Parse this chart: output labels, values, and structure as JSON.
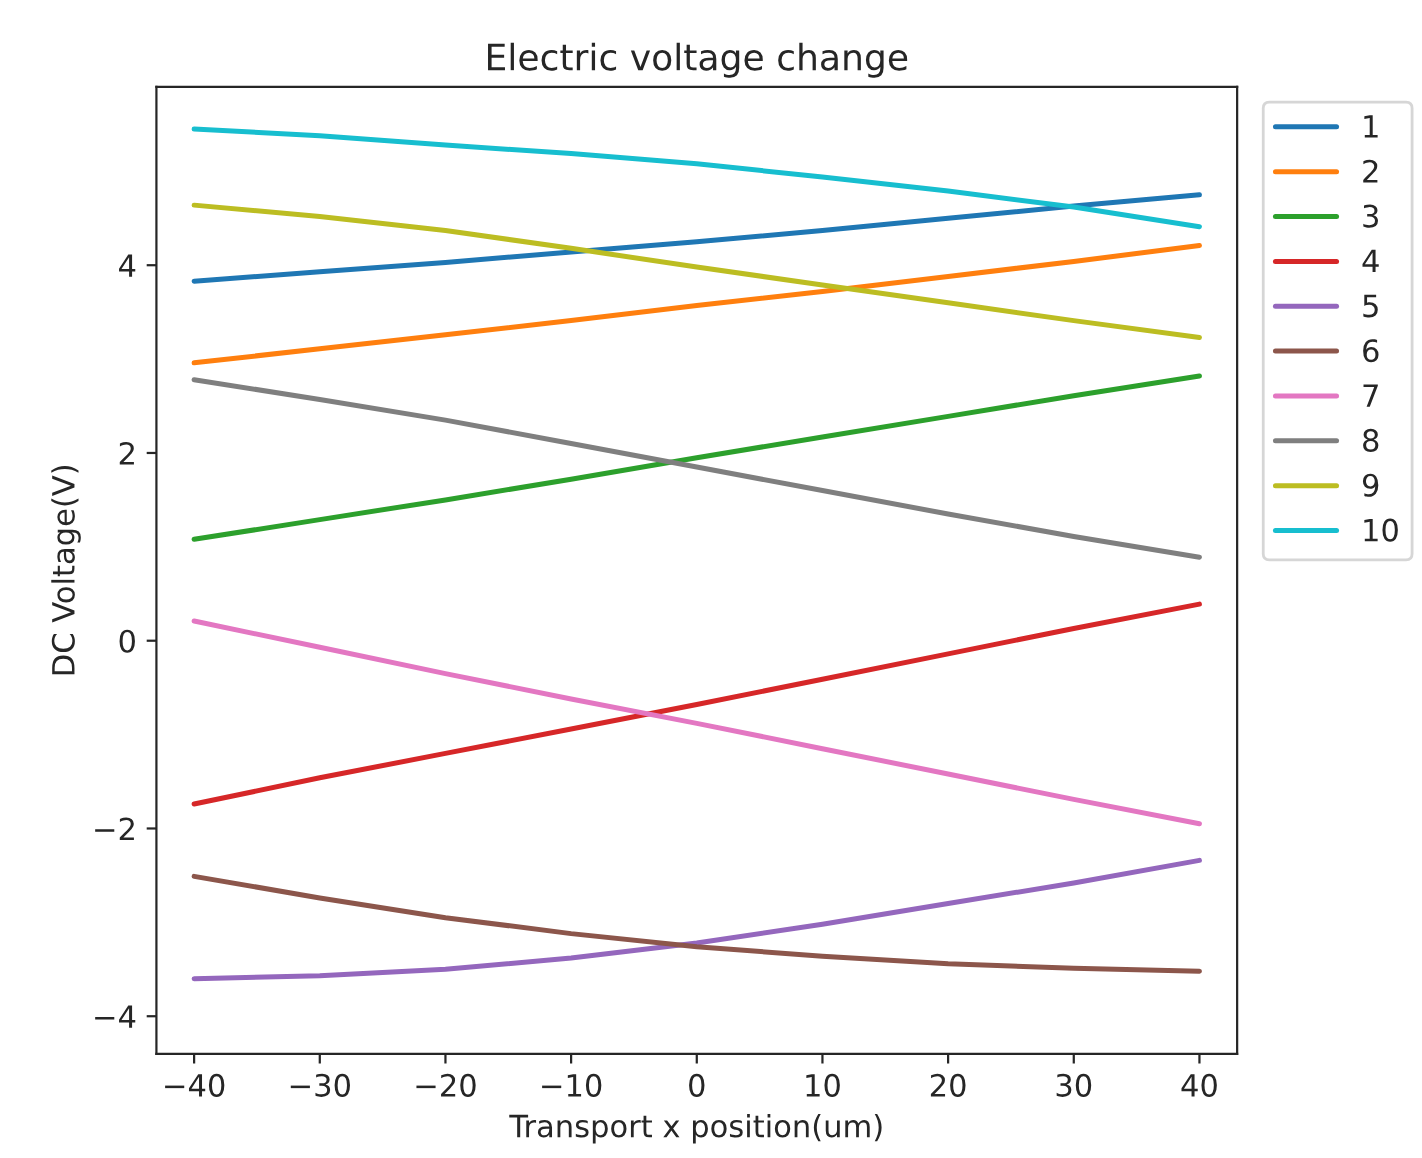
{
  "chart_data": {
    "type": "line",
    "title": "Electric voltage change",
    "xlabel": "Transport x position(um)",
    "ylabel": "DC Voltage(V)",
    "x": [
      -40,
      -30,
      -20,
      -10,
      0,
      10,
      20,
      30,
      40
    ],
    "series": [
      {
        "name": "1",
        "color": "#1f77b4",
        "values": [
          3.83,
          3.93,
          4.03,
          4.14,
          4.25,
          4.37,
          4.5,
          4.63,
          4.75
        ]
      },
      {
        "name": "2",
        "color": "#ff7f0e",
        "values": [
          2.96,
          3.11,
          3.26,
          3.41,
          3.57,
          3.72,
          3.88,
          4.04,
          4.21
        ]
      },
      {
        "name": "3",
        "color": "#2ca02c",
        "values": [
          1.08,
          1.29,
          1.5,
          1.72,
          1.95,
          2.17,
          2.39,
          2.61,
          2.82
        ]
      },
      {
        "name": "4",
        "color": "#d62728",
        "values": [
          -1.74,
          -1.46,
          -1.2,
          -0.94,
          -0.68,
          -0.41,
          -0.14,
          0.13,
          0.39
        ]
      },
      {
        "name": "5",
        "color": "#9467bd",
        "values": [
          -3.6,
          -3.57,
          -3.5,
          -3.38,
          -3.22,
          -3.02,
          -2.8,
          -2.58,
          -2.34
        ]
      },
      {
        "name": "6",
        "color": "#8c564b",
        "values": [
          -2.51,
          -2.74,
          -2.95,
          -3.12,
          -3.26,
          -3.36,
          -3.44,
          -3.49,
          -3.52
        ]
      },
      {
        "name": "7",
        "color": "#e377c2",
        "values": [
          0.21,
          -0.07,
          -0.35,
          -0.62,
          -0.88,
          -1.15,
          -1.42,
          -1.69,
          -1.95
        ]
      },
      {
        "name": "8",
        "color": "#7f7f7f",
        "values": [
          2.78,
          2.57,
          2.35,
          2.1,
          1.85,
          1.6,
          1.35,
          1.11,
          0.89
        ]
      },
      {
        "name": "9",
        "color": "#bcbd22",
        "values": [
          4.64,
          4.52,
          4.37,
          4.18,
          3.98,
          3.79,
          3.6,
          3.41,
          3.23
        ]
      },
      {
        "name": "10",
        "color": "#17becf",
        "values": [
          5.45,
          5.38,
          5.28,
          5.19,
          5.08,
          4.94,
          4.79,
          4.62,
          4.41
        ]
      }
    ],
    "xlim": [
      -43,
      43
    ],
    "xticks": [
      {
        "value": -40,
        "label": "−40"
      },
      {
        "value": -30,
        "label": "−30"
      },
      {
        "value": -20,
        "label": "−20"
      },
      {
        "value": -10,
        "label": "−10"
      },
      0,
      10,
      20,
      30,
      40
    ],
    "ylim": [
      -4.4,
      5.9
    ],
    "yticks": [
      {
        "value": -4,
        "label": "−4"
      },
      {
        "value": -2,
        "label": "−2"
      },
      0,
      2,
      4
    ],
    "grid": false,
    "legend": "top right"
  }
}
